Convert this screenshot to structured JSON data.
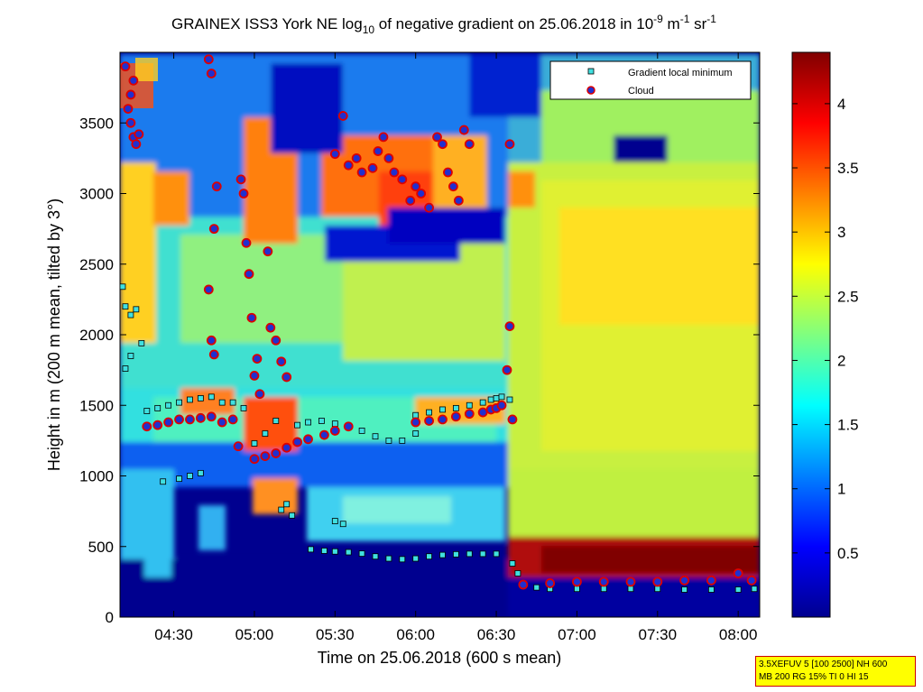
{
  "chart_data": {
    "type": "heatmap",
    "title_parts": {
      "a": "GRAINEX ISS3 York NE log",
      "sub": "10",
      "b": " of negative gradient on 25.06.2018 in 10",
      "sup1": "-9",
      "c": " m",
      "sup2": "-1",
      "d": " sr",
      "sup3": "-1"
    },
    "xlabel": "Time on 25.06.2018 (600 s mean)",
    "ylabel": "Height in m (200 m mean, tilted by 3°)",
    "xlim": [
      "04:10",
      "08:08"
    ],
    "ylim": [
      0,
      4000
    ],
    "xticks": [
      "04:30",
      "05:00",
      "05:30",
      "06:00",
      "06:30",
      "07:00",
      "07:30",
      "08:00"
    ],
    "yticks": [
      0,
      500,
      1000,
      1500,
      2000,
      2500,
      3000,
      3500
    ],
    "colorbar": {
      "range": [
        0,
        4.4
      ],
      "ticks": [
        0.5,
        1,
        1.5,
        2,
        2.5,
        3,
        3.5,
        4
      ],
      "colormap": "jet"
    },
    "legend": {
      "placement": "top-right",
      "items": [
        {
          "label": "Gradient local minimum",
          "marker": "square",
          "color": "#40e0e0"
        },
        {
          "label": "Cloud",
          "marker": "circle",
          "color": "#2030d0",
          "edge": "#dd0000"
        }
      ]
    },
    "series": [
      {
        "name": "Gradient local minimum",
        "points": [
          [
            "04:11",
            2340
          ],
          [
            "04:12",
            2200
          ],
          [
            "04:14",
            2140
          ],
          [
            "04:16",
            2180
          ],
          [
            "04:12",
            1760
          ],
          [
            "04:14",
            1850
          ],
          [
            "04:18",
            1940
          ],
          [
            "04:20",
            1460
          ],
          [
            "04:24",
            1480
          ],
          [
            "04:28",
            1500
          ],
          [
            "04:32",
            1520
          ],
          [
            "04:36",
            1540
          ],
          [
            "04:40",
            1550
          ],
          [
            "04:44",
            1560
          ],
          [
            "04:26",
            960
          ],
          [
            "04:32",
            980
          ],
          [
            "04:36",
            1000
          ],
          [
            "04:40",
            1020
          ],
          [
            "04:48",
            1520
          ],
          [
            "04:52",
            1520
          ],
          [
            "04:56",
            1480
          ],
          [
            "05:00",
            1230
          ],
          [
            "05:04",
            1300
          ],
          [
            "05:08",
            1390
          ],
          [
            "05:10",
            760
          ],
          [
            "05:12",
            800
          ],
          [
            "05:14",
            720
          ],
          [
            "05:16",
            1360
          ],
          [
            "05:20",
            1380
          ],
          [
            "05:25",
            1390
          ],
          [
            "05:21",
            480
          ],
          [
            "05:26",
            470
          ],
          [
            "05:30",
            465
          ],
          [
            "05:35",
            460
          ],
          [
            "05:40",
            450
          ],
          [
            "05:45",
            430
          ],
          [
            "05:50",
            415
          ],
          [
            "05:55",
            410
          ],
          [
            "06:00",
            415
          ],
          [
            "06:05",
            430
          ],
          [
            "06:10",
            440
          ],
          [
            "06:15",
            445
          ],
          [
            "06:20",
            448
          ],
          [
            "06:25",
            448
          ],
          [
            "06:30",
            448
          ],
          [
            "05:30",
            680
          ],
          [
            "05:33",
            660
          ],
          [
            "05:30",
            1370
          ],
          [
            "05:35",
            1350
          ],
          [
            "05:40",
            1320
          ],
          [
            "05:45",
            1280
          ],
          [
            "05:50",
            1250
          ],
          [
            "05:55",
            1250
          ],
          [
            "06:00",
            1300
          ],
          [
            "06:00",
            1430
          ],
          [
            "06:05",
            1450
          ],
          [
            "06:10",
            1470
          ],
          [
            "06:15",
            1480
          ],
          [
            "06:20",
            1500
          ],
          [
            "06:25",
            1520
          ],
          [
            "06:28",
            1540
          ],
          [
            "06:30",
            1550
          ],
          [
            "06:32",
            1560
          ],
          [
            "06:35",
            1540
          ],
          [
            "06:36",
            380
          ],
          [
            "06:38",
            310
          ],
          [
            "06:40",
            230
          ],
          [
            "06:45",
            210
          ],
          [
            "06:50",
            200
          ],
          [
            "07:00",
            200
          ],
          [
            "07:10",
            200
          ],
          [
            "07:20",
            200
          ],
          [
            "07:30",
            200
          ],
          [
            "07:40",
            195
          ],
          [
            "07:50",
            195
          ],
          [
            "08:00",
            195
          ],
          [
            "08:06",
            200
          ]
        ]
      },
      {
        "name": "Cloud",
        "points": [
          [
            "04:12",
            3900
          ],
          [
            "04:13",
            3600
          ],
          [
            "04:14",
            3500
          ],
          [
            "04:15",
            3400
          ],
          [
            "04:16",
            3350
          ],
          [
            "04:17",
            3420
          ],
          [
            "04:14",
            3700
          ],
          [
            "04:15",
            3800
          ],
          [
            "04:43",
            3950
          ],
          [
            "04:44",
            3850
          ],
          [
            "04:45",
            2750
          ],
          [
            "04:46",
            3050
          ],
          [
            "04:43",
            2320
          ],
          [
            "04:44",
            1960
          ],
          [
            "04:45",
            1860
          ],
          [
            "04:20",
            1350
          ],
          [
            "04:24",
            1360
          ],
          [
            "04:28",
            1380
          ],
          [
            "04:32",
            1400
          ],
          [
            "04:36",
            1400
          ],
          [
            "04:40",
            1410
          ],
          [
            "04:44",
            1420
          ],
          [
            "04:48",
            1380
          ],
          [
            "04:52",
            1400
          ],
          [
            "04:54",
            1210
          ],
          [
            "04:55",
            3100
          ],
          [
            "04:56",
            3000
          ],
          [
            "04:57",
            2650
          ],
          [
            "04:58",
            2430
          ],
          [
            "04:59",
            2120
          ],
          [
            "05:00",
            1710
          ],
          [
            "05:01",
            1830
          ],
          [
            "05:02",
            1580
          ],
          [
            "05:05",
            2590
          ],
          [
            "05:06",
            2050
          ],
          [
            "05:08",
            1960
          ],
          [
            "05:10",
            1810
          ],
          [
            "05:12",
            1700
          ],
          [
            "05:00",
            1120
          ],
          [
            "05:04",
            1140
          ],
          [
            "05:08",
            1160
          ],
          [
            "05:12",
            1200
          ],
          [
            "05:16",
            1240
          ],
          [
            "05:20",
            1260
          ],
          [
            "05:26",
            1290
          ],
          [
            "05:30",
            1320
          ],
          [
            "05:35",
            1350
          ],
          [
            "05:33",
            3550
          ],
          [
            "05:30",
            3280
          ],
          [
            "05:35",
            3200
          ],
          [
            "05:38",
            3250
          ],
          [
            "05:40",
            3150
          ],
          [
            "05:44",
            3180
          ],
          [
            "05:46",
            3300
          ],
          [
            "05:48",
            3400
          ],
          [
            "05:50",
            3250
          ],
          [
            "05:52",
            3150
          ],
          [
            "05:55",
            3100
          ],
          [
            "05:58",
            2950
          ],
          [
            "06:00",
            3050
          ],
          [
            "06:02",
            3000
          ],
          [
            "06:05",
            2900
          ],
          [
            "06:08",
            3400
          ],
          [
            "06:10",
            3350
          ],
          [
            "06:12",
            3150
          ],
          [
            "06:14",
            3050
          ],
          [
            "06:16",
            2950
          ],
          [
            "06:18",
            3450
          ],
          [
            "06:20",
            3350
          ],
          [
            "06:00",
            1380
          ],
          [
            "06:05",
            1390
          ],
          [
            "06:10",
            1400
          ],
          [
            "06:15",
            1420
          ],
          [
            "06:20",
            1440
          ],
          [
            "06:25",
            1450
          ],
          [
            "06:28",
            1470
          ],
          [
            "06:30",
            1480
          ],
          [
            "06:32",
            1500
          ],
          [
            "06:34",
            1750
          ],
          [
            "06:35",
            2060
          ],
          [
            "06:36",
            1400
          ],
          [
            "06:35",
            3350
          ],
          [
            "06:40",
            230
          ],
          [
            "06:50",
            240
          ],
          [
            "07:00",
            250
          ],
          [
            "07:10",
            250
          ],
          [
            "07:20",
            250
          ],
          [
            "07:30",
            250
          ],
          [
            "07:40",
            260
          ],
          [
            "07:50",
            260
          ],
          [
            "08:00",
            310
          ],
          [
            "08:05",
            260
          ]
        ]
      }
    ]
  },
  "annotation": {
    "line1": "3.5XEFUV 5 [100 2500] NH 600",
    "line2": "MB 200 RG 15% TI 0 HI 15"
  }
}
